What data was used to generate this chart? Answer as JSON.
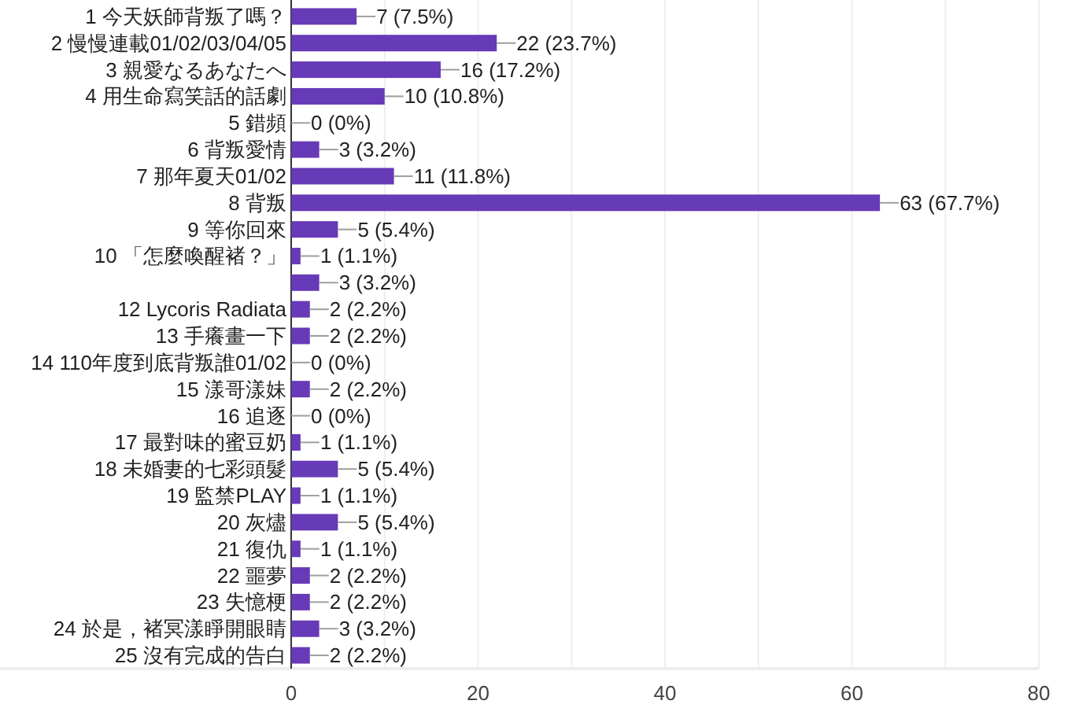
{
  "chart_data": {
    "type": "bar",
    "orientation": "horizontal",
    "categories": [
      "1 今天妖師背叛了嗎？",
      "2 慢慢連載01/02/03/04/05",
      "3 親愛なるあなたへ",
      "4 用生命寫笑話的話劇",
      "5 錯頻",
      "6 背叛愛情",
      "7 那年夏天01/02",
      "8 背叛",
      "9 等你回來",
      "10 「怎麼喚醒褚？」",
      null,
      "12 Lycoris Radiata",
      "13 手癢畫一下",
      "14 110年度到底背叛誰01/02",
      "15 漾哥漾妹",
      "16 追逐",
      "17 最對味的蜜豆奶",
      "18 未婚妻的七彩頭髮",
      "19 監禁PLAY",
      "20 灰燼",
      "21 復仇",
      "22 噩夢",
      "23 失憶梗",
      "24 於是，褚冥漾睜開眼睛",
      "25 沒有完成的告白"
    ],
    "values": [
      7,
      22,
      16,
      10,
      0,
      3,
      11,
      63,
      5,
      1,
      3,
      2,
      2,
      0,
      2,
      0,
      1,
      5,
      1,
      5,
      1,
      2,
      2,
      3,
      2
    ],
    "value_labels": [
      "7 (7.5%)",
      "22 (23.7%)",
      "16 (17.2%)",
      "10 (10.8%)",
      "0 (0%)",
      "3 (3.2%)",
      "11 (11.8%)",
      "63 (67.7%)",
      "5 (5.4%)",
      "1 (1.1%)",
      "3 (3.2%)",
      "2 (2.2%)",
      "2 (2.2%)",
      "0 (0%)",
      "2 (2.2%)",
      "0 (0%)",
      "1 (1.1%)",
      "5 (5.4%)",
      "1 (1.1%)",
      "5 (5.4%)",
      "1 (1.1%)",
      "2 (2.2%)",
      "2 (2.2%)",
      "3 (3.2%)",
      "2 (2.2%)"
    ],
    "color": "#673ab7",
    "xlim": [
      0,
      80
    ],
    "xticks": [
      0,
      {
        "value": 10,
        "label": null
      },
      20,
      {
        "value": 30,
        "label": null
      },
      40,
      {
        "value": 50,
        "label": null
      },
      60,
      {
        "value": 70,
        "label": null
      },
      80
    ],
    "grid": "x"
  }
}
